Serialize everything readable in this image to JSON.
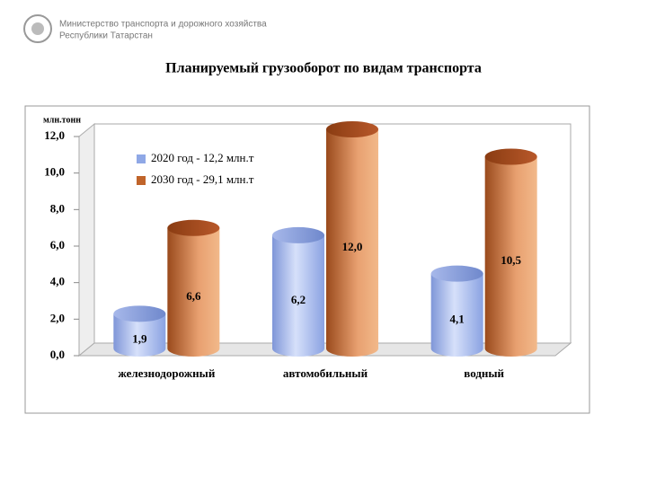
{
  "header": {
    "ministry": "Министерство транспорта и дорожного хозяйства",
    "republic": "Республики Татарстан"
  },
  "chart_data": {
    "type": "cylinder-bar",
    "title": "Планируемый грузооборот по видам транспорта",
    "y_axis_label": "млн.тонн",
    "categories": [
      "железнодорожный",
      "автомобильный",
      "водный"
    ],
    "series": [
      {
        "name": "2020 год - 12,2 млн.т",
        "color": "#8fa8e6",
        "values": [
          1.9,
          6.2,
          4.1
        ],
        "value_labels": [
          "1,9",
          "6,2",
          "4,1"
        ]
      },
      {
        "name": "2030 год - 29,1 млн.т",
        "color": "#c0642a",
        "values": [
          6.6,
          12.0,
          10.5
        ],
        "value_labels": [
          "6,6",
          "12,0",
          "10,5"
        ]
      }
    ],
    "ylim": [
      0,
      12
    ],
    "yticks": [
      {
        "value": 0,
        "label": "0,0"
      },
      {
        "value": 2,
        "label": "2,0"
      },
      {
        "value": 4,
        "label": "4,0"
      },
      {
        "value": 6,
        "label": "6,0"
      },
      {
        "value": 8,
        "label": "8,0"
      },
      {
        "value": 10,
        "label": "10,0"
      },
      {
        "value": 12,
        "label": "12,0"
      }
    ],
    "legend": "upper-left"
  }
}
